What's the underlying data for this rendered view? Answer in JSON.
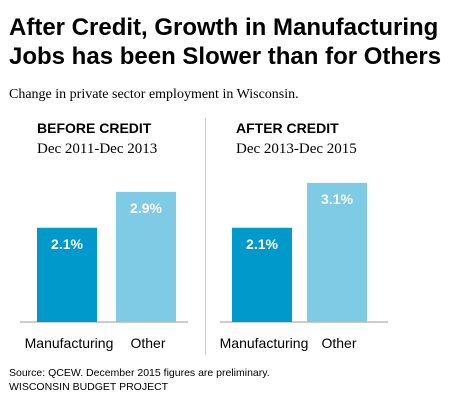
{
  "title": "After Credit, Growth in Manufacturing Jobs has been Slower than for Others",
  "subtitle": "Change in private sector employment in Wisconsin.",
  "source_note": "Source: QCEW. December 2015 figures are preliminary.",
  "organization": "WISCONSIN BUDGET PROJECT",
  "colors": {
    "manufacturing": "#0099cc",
    "other": "#7fcbe6"
  },
  "chart_data": [
    {
      "type": "bar",
      "title": "BEFORE CREDIT",
      "subtitle": "Dec 2011-Dec 2013",
      "categories": [
        "Manufacturing",
        "Other"
      ],
      "values": [
        2.1,
        2.9
      ],
      "labels": [
        "2.1%",
        "2.9%"
      ],
      "ylim": [
        0,
        4.1
      ],
      "grid": false,
      "legend": "none"
    },
    {
      "type": "bar",
      "title": "AFTER CREDIT",
      "subtitle": "Dec 2013-Dec 2015",
      "categories": [
        "Manufacturing",
        "Other"
      ],
      "values": [
        2.1,
        3.1
      ],
      "labels": [
        "2.1%",
        "3.1%"
      ],
      "ylim": [
        0,
        4.1
      ],
      "grid": false,
      "legend": "none"
    }
  ]
}
